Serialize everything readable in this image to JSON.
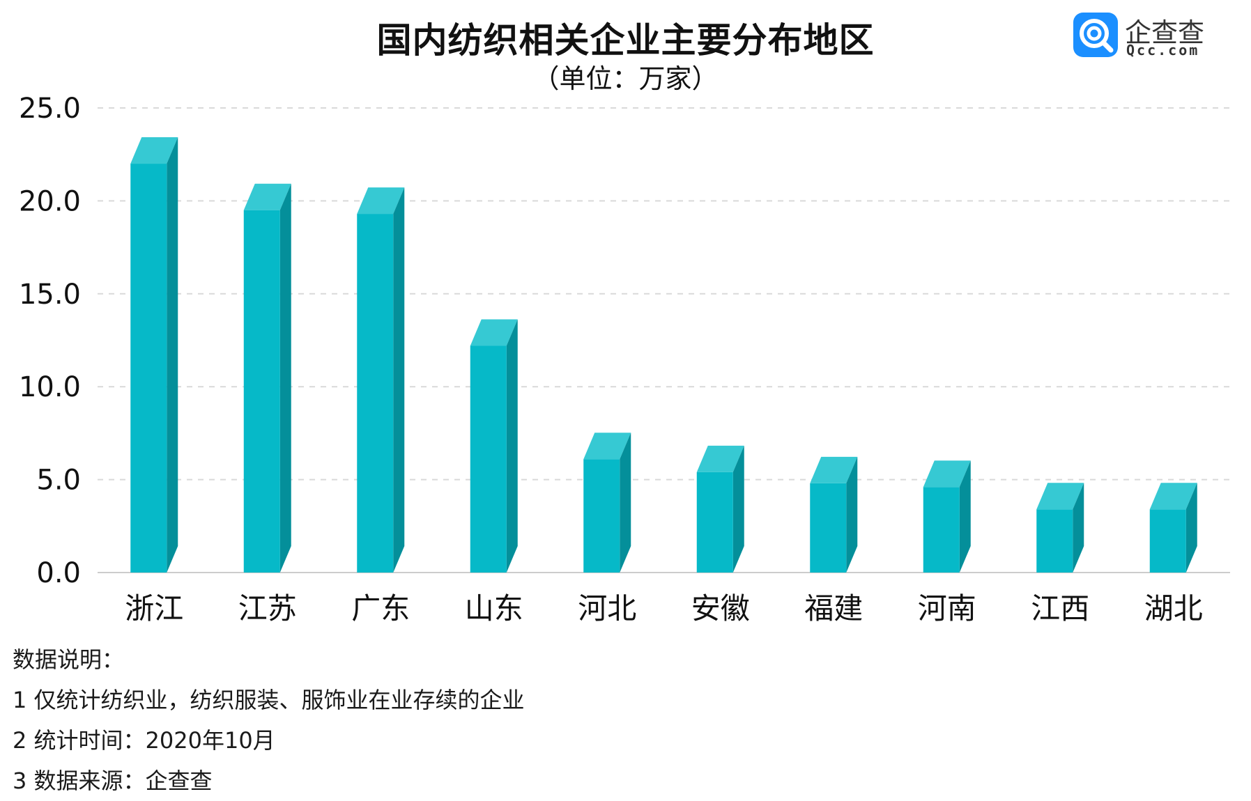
{
  "header": {
    "title": "国内纺织相关企业主要分布地区",
    "subtitle": "（单位：万家）"
  },
  "logo": {
    "name": "企查查",
    "domain": "Qcc.com",
    "icon": "qcc-logo-icon",
    "color": "#1b8fff"
  },
  "chart_data": {
    "type": "bar",
    "title": "国内纺织相关企业主要分布地区",
    "subtitle": "（单位：万家）",
    "categories": [
      "浙江",
      "江苏",
      "广东",
      "山东",
      "河北",
      "安徽",
      "福建",
      "河南",
      "江西",
      "湖北"
    ],
    "values": [
      22.0,
      19.5,
      19.3,
      12.2,
      6.1,
      5.4,
      4.8,
      4.6,
      3.4,
      3.4
    ],
    "y_ticks": [
      "0.0",
      "5.0",
      "10.0",
      "15.0",
      "20.0",
      "25.0"
    ],
    "ylim": [
      0,
      25
    ],
    "grid": true,
    "legend": false,
    "bar_color": "#06b9c8",
    "bar_top_color": "#36c9d3",
    "bar_side_color": "#048f9a"
  },
  "notes": {
    "heading": "数据说明：",
    "lines": [
      "1 仅统计纺织业，纺织服装、服饰业在业存续的企业",
      "2 统计时间：2020年10月",
      "3 数据来源：企查查"
    ]
  }
}
